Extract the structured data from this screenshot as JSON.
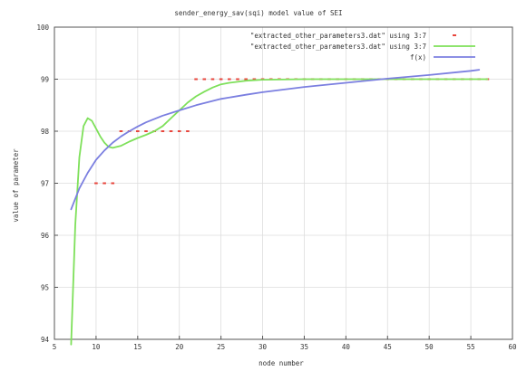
{
  "chart_data": {
    "type": "line",
    "title": "sender_energy_sav(sqi) model value of SEI",
    "xlabel": "node number",
    "ylabel": "value of parameter",
    "xlim": [
      5,
      60
    ],
    "ylim": [
      94,
      100
    ],
    "xticks": [
      5,
      10,
      15,
      20,
      25,
      30,
      35,
      40,
      45,
      50,
      55,
      60
    ],
    "yticks": [
      94,
      95,
      96,
      97,
      98,
      99,
      100
    ],
    "grid": true,
    "legend_position": "top-right",
    "series": [
      {
        "name": "\"extracted_other_parameters3.dat\" using 3:7",
        "style": "points",
        "color": "#e8453c",
        "x": [
          10,
          11,
          12,
          13,
          14,
          15,
          16,
          17,
          18,
          19,
          20,
          21,
          22,
          23,
          24,
          25,
          26,
          27,
          28,
          29,
          30,
          31,
          32,
          33,
          34,
          35,
          36,
          37,
          38,
          39,
          40,
          41,
          42,
          43,
          44,
          45,
          46,
          47,
          48,
          49,
          50,
          51,
          52,
          53,
          54,
          55,
          56,
          57
        ],
        "y": [
          97,
          97,
          97,
          98,
          98,
          98,
          98,
          98,
          98,
          98,
          98,
          98,
          99,
          99,
          99,
          99,
          99,
          99,
          99,
          99,
          99,
          99,
          99,
          99,
          99,
          99,
          99,
          99,
          99,
          99,
          99,
          99,
          99,
          99,
          99,
          99,
          99,
          99,
          99,
          99,
          99,
          99,
          99,
          99,
          99,
          99,
          99,
          99
        ]
      },
      {
        "name": "\"extracted_other_parameters3.dat\" using 3:7",
        "style": "smooth-line",
        "color": "#7ee05a",
        "x": [
          7,
          7.5,
          8,
          8.5,
          9,
          9.5,
          10,
          10.5,
          11,
          11.5,
          12,
          13,
          14,
          15,
          16,
          17,
          18,
          19,
          20,
          21,
          22,
          23,
          24,
          25,
          26,
          27,
          28,
          30,
          35,
          40,
          45,
          50,
          55,
          57
        ],
        "y": [
          93.9,
          96.2,
          97.5,
          98.1,
          98.25,
          98.2,
          98.05,
          97.9,
          97.78,
          97.7,
          97.68,
          97.72,
          97.8,
          97.87,
          97.93,
          98.0,
          98.1,
          98.25,
          98.4,
          98.55,
          98.67,
          98.76,
          98.84,
          98.9,
          98.93,
          98.95,
          98.97,
          98.99,
          99.0,
          99.0,
          99.0,
          99.0,
          99.0,
          99.0
        ]
      },
      {
        "name": "f(x)",
        "style": "line",
        "color": "#7b7fe0",
        "x": [
          7,
          8,
          9,
          10,
          11,
          12,
          13,
          14,
          15,
          16,
          18,
          20,
          22,
          25,
          28,
          30,
          35,
          40,
          45,
          50,
          55,
          56
        ],
        "y": [
          96.5,
          96.9,
          97.2,
          97.45,
          97.63,
          97.78,
          97.9,
          98.0,
          98.09,
          98.17,
          98.3,
          98.4,
          98.5,
          98.62,
          98.7,
          98.75,
          98.85,
          98.93,
          99.01,
          99.08,
          99.16,
          99.18
        ]
      }
    ]
  }
}
